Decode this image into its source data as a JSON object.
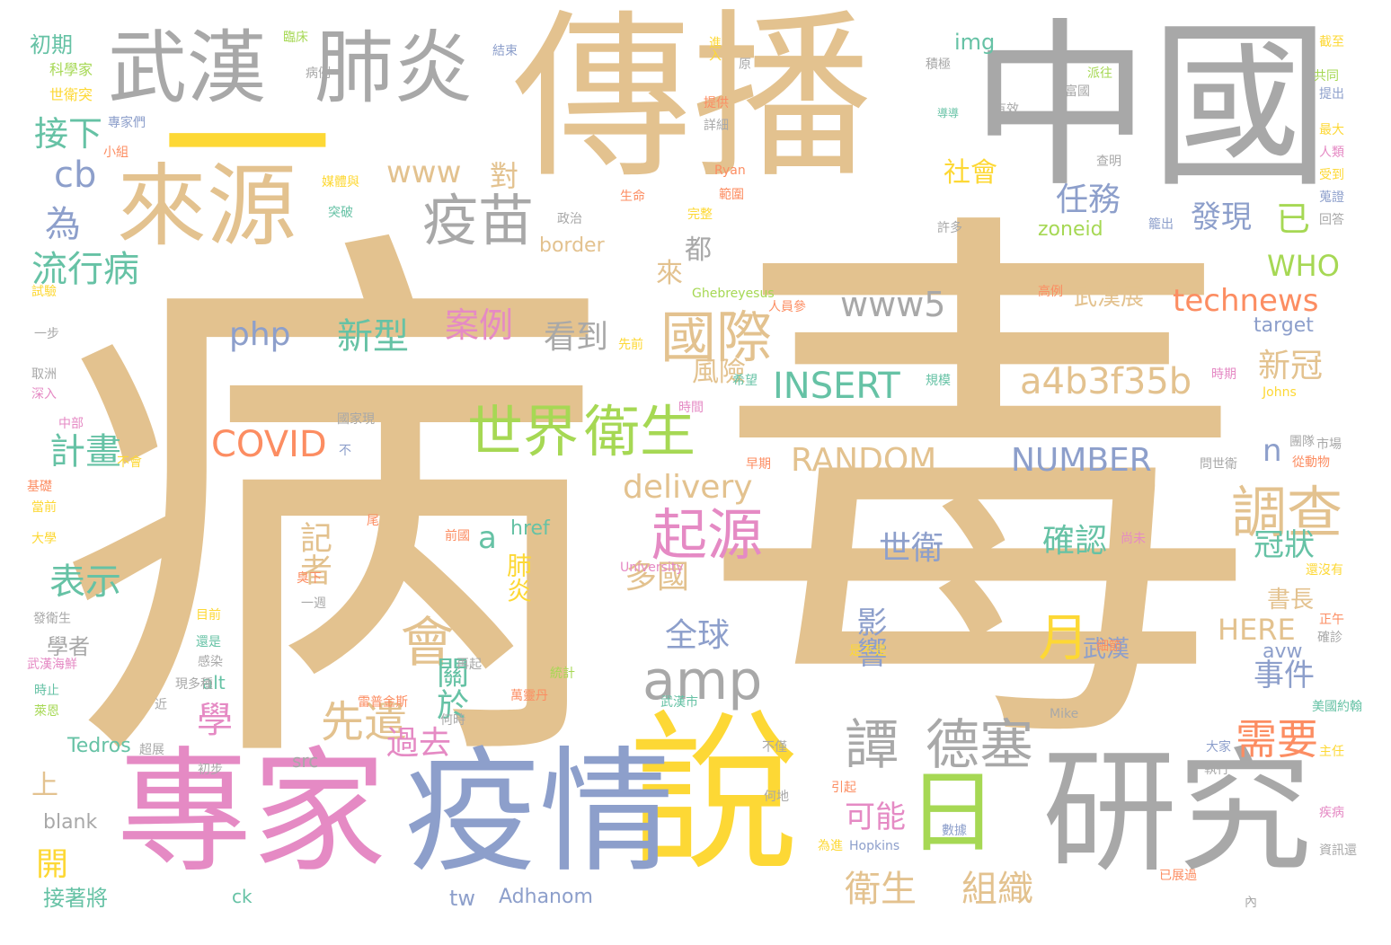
{
  "palette": {
    "tan": "#e3c28f",
    "gray": "#a8a8a8",
    "pink": "#e58ac4",
    "blue": "#8d9fcb",
    "yellow": "#fdd835",
    "green": "#a6d854",
    "orange": "#fc8d62",
    "teal": "#66c2a5"
  },
  "words": [
    "病",
    "毒",
    "傳播",
    "中國",
    "一",
    "說",
    "專家",
    "疫情",
    "研究",
    "武漢",
    "肺炎",
    "來源",
    "日",
    "疫苗",
    "國際",
    "世界",
    "衛生",
    "起源",
    "調查",
    "譚",
    "德塞",
    "amp",
    "會",
    "a4b3f35b",
    "INSERT",
    "technews",
    "www",
    "www5",
    "RANDOM",
    "NUMBER",
    "COVID",
    "delivery",
    "php",
    "任務",
    "發現",
    "已",
    "WHO",
    "zoneid",
    "border",
    "img",
    "target",
    "新冠",
    "確認",
    "世衛",
    "冠狀",
    "書長",
    "事件",
    "需要",
    "組織",
    "衛生",
    "可能",
    "影響",
    "全球",
    "多國",
    "先遣",
    "關於",
    "學",
    "記者",
    "過去",
    "表示",
    "計畫",
    "流行病",
    "接下",
    "為",
    "cb",
    "看到",
    "案例",
    "新型",
    "風險",
    "月",
    "HERE",
    "avw",
    "武漢展",
    "社會",
    "來",
    "都",
    "對",
    "肺炎",
    "href",
    "alt",
    "src",
    "Tedros",
    "Adhanom",
    "blank",
    "ck",
    "tw",
    "上",
    "開",
    "接著將",
    "學者",
    "初期",
    "科學家",
    "世衛突",
    "臨床",
    "病例",
    "原",
    "積極",
    "富國",
    "有效",
    "專家們",
    "小組",
    "媒體與",
    "突破",
    "生命",
    "範圍",
    "提供",
    "詳細",
    "派往",
    "導導",
    "截至",
    "共同",
    "提出",
    "最大",
    "人類",
    "受到",
    "蒐證",
    "回答",
    "許多",
    "籠出",
    "進入",
    "結束",
    "a",
    "n",
    "武漢",
    "完整",
    "政治",
    "查明",
    "Ryan",
    "Ghebreyesus",
    "人員參",
    "高例",
    "先前",
    "時間",
    "規模",
    "希望",
    "時期",
    "Johns",
    "試驗",
    "一步",
    "取洲",
    "深入",
    "中部",
    "國家現",
    "不",
    "不會",
    "基礎",
    "當前",
    "大學",
    "尾",
    "前國",
    "尚未",
    "University",
    "臭下",
    "一週",
    "目前",
    "還是",
    "感染",
    "武漢海鮮",
    "時止",
    "萊恩",
    "近",
    "現多種",
    "再起",
    "統計",
    "萬靈丹",
    "雷普金斯",
    "何時",
    "是不是",
    "細節",
    "還沒有",
    "正午",
    "確診",
    "美國約翰",
    "Mike",
    "大家",
    "執行",
    "主任",
    "不僅",
    "何地",
    "引起",
    "為進",
    "Hopkins",
    "數據",
    "已展過",
    "內",
    "資訊還",
    "疾病",
    "早期",
    "問世衛",
    "市場",
    "從動物",
    "團隊",
    "武漢市",
    "發衛生",
    "超展",
    "初步"
  ]
}
